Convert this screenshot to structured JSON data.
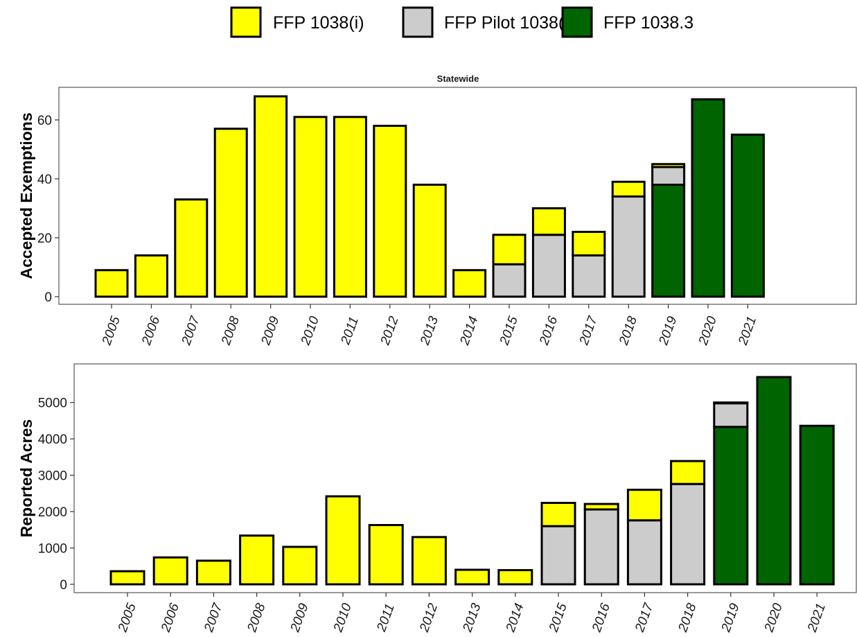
{
  "legend": [
    {
      "label": "FFP 1038(i)",
      "color": "#ffff00"
    },
    {
      "label": "FFP Pilot 1038(j)",
      "color": "#cccccc"
    },
    {
      "label": "FFP 1038.3",
      "color": "#006400"
    }
  ],
  "chart_data": [
    {
      "type": "bar",
      "stacked": true,
      "title": "Statewide",
      "xlabel": "",
      "ylabel": "Accepted Exemptions",
      "ylim": [
        0,
        71
      ],
      "yticks": [
        0,
        20,
        40,
        60
      ],
      "categories": [
        "2005",
        "2006",
        "2007",
        "2008",
        "2009",
        "2010",
        "2011",
        "2012",
        "2013",
        "2014",
        "2015",
        "2016",
        "2017",
        "2018",
        "2019",
        "2020",
        "2021"
      ],
      "series": [
        {
          "name": "FFP 1038.3",
          "color": "#006400",
          "values": [
            0,
            0,
            0,
            0,
            0,
            0,
            0,
            0,
            0,
            0,
            0,
            0,
            0,
            0,
            38,
            67,
            55
          ]
        },
        {
          "name": "FFP Pilot 1038(j)",
          "color": "#cccccc",
          "values": [
            0,
            0,
            0,
            0,
            0,
            0,
            0,
            0,
            0,
            0,
            11,
            21,
            14,
            34,
            6,
            0,
            0
          ]
        },
        {
          "name": "FFP 1038(i)",
          "color": "#ffff00",
          "values": [
            9,
            14,
            33,
            57,
            68,
            61,
            61,
            58,
            38,
            9,
            10,
            9,
            8,
            5,
            1,
            0,
            0
          ]
        }
      ],
      "grid": false
    },
    {
      "type": "bar",
      "stacked": true,
      "title": "",
      "xlabel": "",
      "ylabel": "Reported Acres",
      "ylim": [
        0,
        5900
      ],
      "yticks": [
        0,
        1000,
        2000,
        3000,
        4000,
        5000
      ],
      "categories": [
        "2005",
        "2006",
        "2007",
        "2008",
        "2009",
        "2010",
        "2011",
        "2012",
        "2013",
        "2014",
        "2015",
        "2016",
        "2017",
        "2018",
        "2019",
        "2020",
        "2021"
      ],
      "series": [
        {
          "name": "FFP 1038.3",
          "color": "#006400",
          "values": [
            0,
            0,
            0,
            0,
            0,
            0,
            0,
            0,
            0,
            0,
            0,
            0,
            0,
            0,
            4330,
            5700,
            4360
          ]
        },
        {
          "name": "FFP Pilot 1038(j)",
          "color": "#cccccc",
          "values": [
            0,
            0,
            0,
            0,
            0,
            0,
            0,
            0,
            0,
            0,
            1600,
            2060,
            1760,
            2760,
            650,
            0,
            0
          ]
        },
        {
          "name": "FFP 1038(i)",
          "color": "#ffff00",
          "values": [
            360,
            740,
            650,
            1340,
            1030,
            2420,
            1630,
            1300,
            400,
            390,
            640,
            150,
            840,
            630,
            20,
            0,
            0
          ]
        }
      ],
      "grid": false
    }
  ]
}
